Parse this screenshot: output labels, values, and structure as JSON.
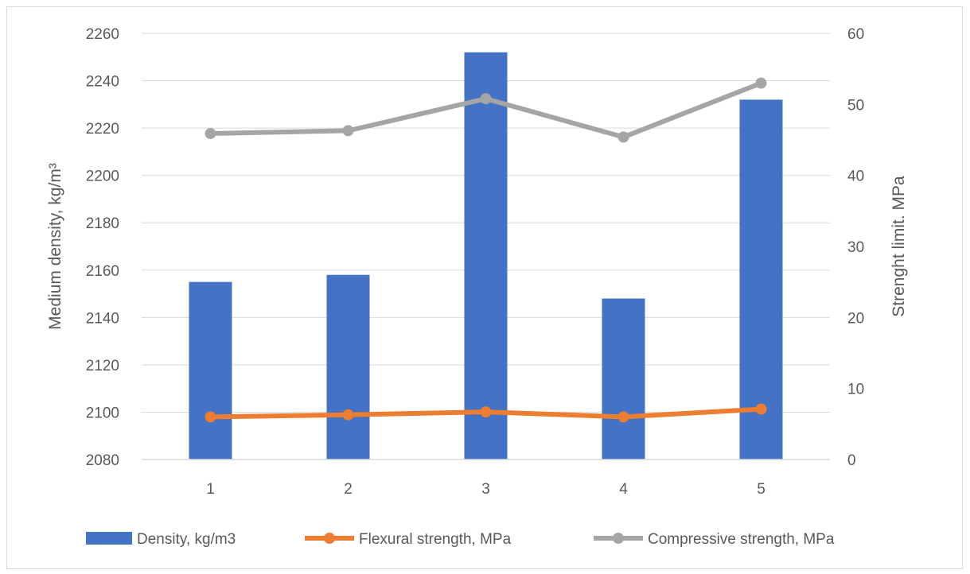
{
  "chart_data": {
    "type": "bar",
    "categories": [
      "1",
      "2",
      "3",
      "4",
      "5"
    ],
    "series": [
      {
        "name": "Density, kg/m3",
        "kind": "bar",
        "axis": "left",
        "color": "#4472C4",
        "values": [
          2155,
          2158,
          2252,
          2148,
          2232
        ]
      },
      {
        "name": "Flexural strength, MPa",
        "kind": "line",
        "axis": "right",
        "color": "#ED7D31",
        "values": [
          6.0,
          6.3,
          6.7,
          6.0,
          7.1
        ]
      },
      {
        "name": "Compressive strength, MPa",
        "kind": "line",
        "axis": "right",
        "color": "#A5A5A5",
        "values": [
          45.9,
          46.3,
          50.8,
          45.4,
          53.0
        ]
      }
    ],
    "y_left": {
      "label": "Medium density, kg/m³",
      "range": [
        2080,
        2260
      ],
      "ticks": [
        2080,
        2100,
        2120,
        2140,
        2160,
        2180,
        2200,
        2220,
        2240,
        2260
      ]
    },
    "y_right": {
      "label": "Strenght limit. MPa",
      "range": [
        0,
        60
      ],
      "ticks": [
        0,
        10,
        20,
        30,
        40,
        50,
        60
      ]
    },
    "grid": true,
    "legend_position": "bottom",
    "grid_color": "#d9d9d9"
  }
}
